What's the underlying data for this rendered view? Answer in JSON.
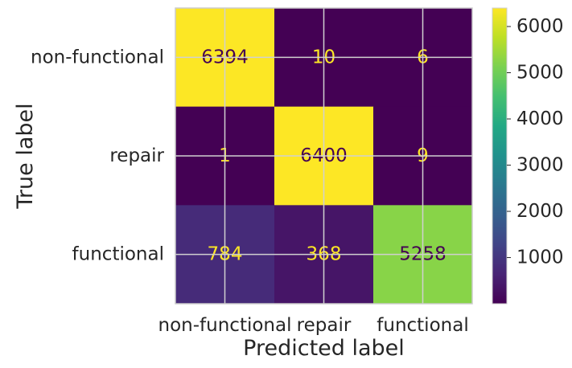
{
  "chart_data": {
    "type": "heatmap",
    "colormap": "viridis",
    "x_categories": [
      "non-functional",
      "repair",
      "functional"
    ],
    "y_categories": [
      "non-functional",
      "repair",
      "functional"
    ],
    "values": [
      [
        6394,
        10,
        6
      ],
      [
        1,
        6400,
        9
      ],
      [
        784,
        368,
        5258
      ]
    ],
    "xlabel": "Predicted label",
    "ylabel": "True label",
    "colorbar": {
      "min": 1,
      "max": 6400,
      "ticks": [
        1000,
        2000,
        3000,
        4000,
        5000,
        6000
      ],
      "tick_labels": [
        "1000",
        "2000",
        "3000",
        "4000",
        "5000",
        "6000"
      ]
    },
    "grid": true,
    "text_colors": {
      "light": "#fde725",
      "dark": "#440154"
    }
  }
}
